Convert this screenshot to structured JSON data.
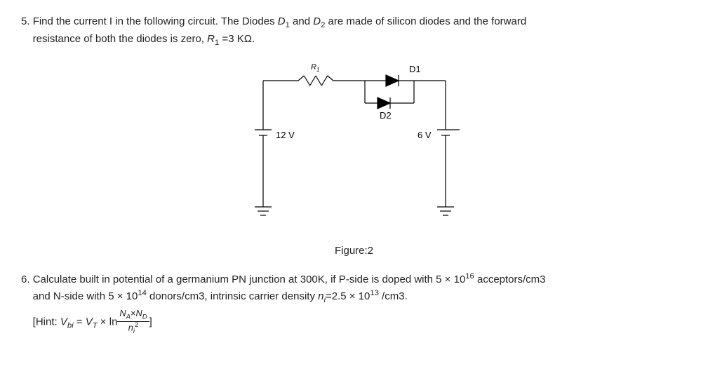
{
  "q5": {
    "number": "5.",
    "line1_a": "Find the current I in the following circuit. The Diodes ",
    "d1": "D",
    "d1sub": "1",
    "line1_b": " and ",
    "d2": "D",
    "d2sub": "2",
    "line1_c": " are made of silicon diodes and the forward",
    "line2_a": "resistance of both the diodes is zero, ",
    "r1": "R",
    "r1sub": "1",
    "line2_b": " =3 KΩ.",
    "circuit": {
      "r1_label": "R",
      "r1_sub": "1",
      "d1_label": "D1",
      "d2_label": "D2",
      "v_left": "12 V",
      "v_right": "6 V",
      "stroke": "#000000",
      "stroke_width": 1.2,
      "label_fontsize": 13,
      "small_fontsize": 11
    },
    "figure_caption": "Figure:2"
  },
  "q6": {
    "number": "6.",
    "line1_a": "Calculate built in potential of a germanium PN junction at 300K, if P-side is doped with ",
    "dop1_a": "5 × 10",
    "dop1_sup": "16",
    "line1_b": " acceptors/cm3",
    "line2_a": "and N-side with ",
    "dop2_a": "5 × 10",
    "dop2_sup": "14",
    "line2_b": " donors/cm3, intrinsic carrier density ",
    "ni": "n",
    "ni_sub": "i",
    "line2_c": "=2.5 × 10",
    "ni_sup": "13",
    "line2_d": " /cm3.",
    "hint_open": "[Hint: ",
    "vbi": "V",
    "vbi_sub": "bi",
    "eq": " = ",
    "vt": "V",
    "vt_sub": "T",
    "times_ln": " × ln",
    "frac_num_a": "N",
    "frac_num_a_sub": "A",
    "frac_num_x": "×",
    "frac_num_b": "N",
    "frac_num_b_sub": "D",
    "frac_den": "n",
    "frac_den_sub": "i",
    "frac_den_sup": "2",
    "hint_close": "]"
  }
}
